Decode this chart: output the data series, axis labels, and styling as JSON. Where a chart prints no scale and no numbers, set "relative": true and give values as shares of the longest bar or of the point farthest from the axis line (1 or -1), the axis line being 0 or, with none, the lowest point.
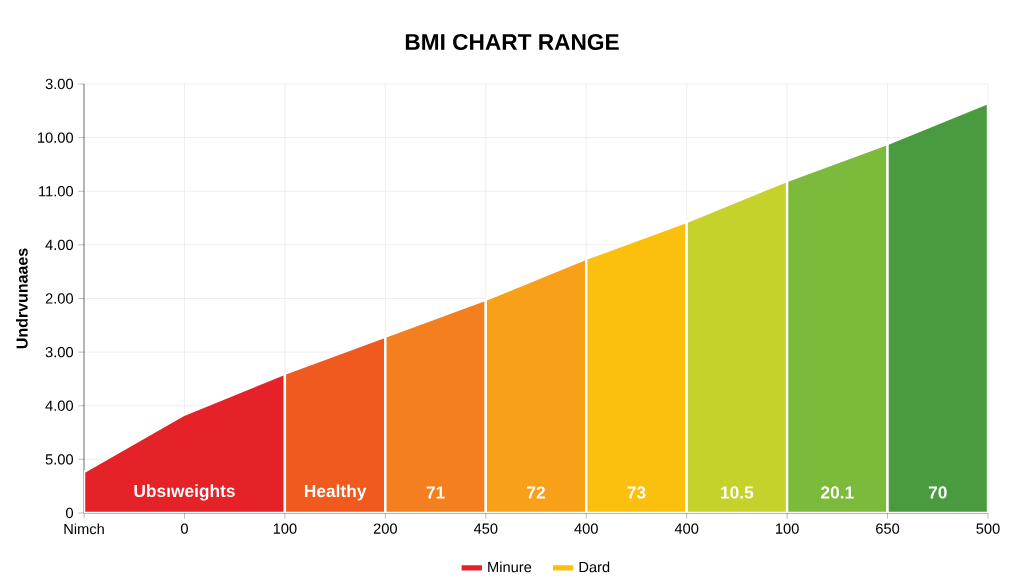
{
  "chart_data": {
    "type": "area",
    "title": "BMI CHART RANGE",
    "ylabel": "Undrvunaaes",
    "relative": true,
    "categories": [
      "Nimch",
      "0",
      "100",
      "200",
      "450",
      "400",
      "400",
      "100",
      "650",
      "500"
    ],
    "series": [
      {
        "name": "Minure",
        "color": "#e52228",
        "values": [
          0.1,
          0.24,
          0.34,
          null,
          null,
          null,
          null,
          null,
          null,
          null
        ]
      },
      {
        "color": "#f05a1e",
        "values": [
          null,
          null,
          0.34,
          0.43,
          null,
          null,
          null,
          null,
          null,
          null
        ]
      },
      {
        "color": "#f47f1e",
        "values": [
          null,
          null,
          null,
          0.43,
          0.52,
          null,
          null,
          null,
          null,
          null
        ]
      },
      {
        "color": "#f8a118",
        "values": [
          null,
          null,
          null,
          null,
          0.52,
          0.62,
          null,
          null,
          null,
          null
        ]
      },
      {
        "name": "Dard",
        "color": "#fbbf0e",
        "values": [
          null,
          null,
          null,
          null,
          null,
          0.62,
          0.71,
          null,
          null,
          null
        ]
      },
      {
        "color": "#c6d22c",
        "values": [
          null,
          null,
          null,
          null,
          null,
          null,
          0.71,
          0.81,
          null,
          null
        ]
      },
      {
        "color": "#7cba3b",
        "values": [
          null,
          null,
          null,
          null,
          null,
          null,
          null,
          0.81,
          0.9,
          null
        ]
      },
      {
        "color": "#4a9a40",
        "values": [
          null,
          null,
          null,
          null,
          null,
          null,
          null,
          null,
          0.9,
          1.0
        ]
      }
    ],
    "annotations": [
      "Ubsıweights",
      "Healthy",
      "71",
      "72",
      "73",
      "10.5",
      "20.1",
      "70",
      "3.00",
      "10.00",
      "11.00",
      "4.00",
      "2.00",
      "3.00",
      "4.00",
      "5.00",
      "0"
    ],
    "grid": true,
    "legend": "bottom"
  }
}
